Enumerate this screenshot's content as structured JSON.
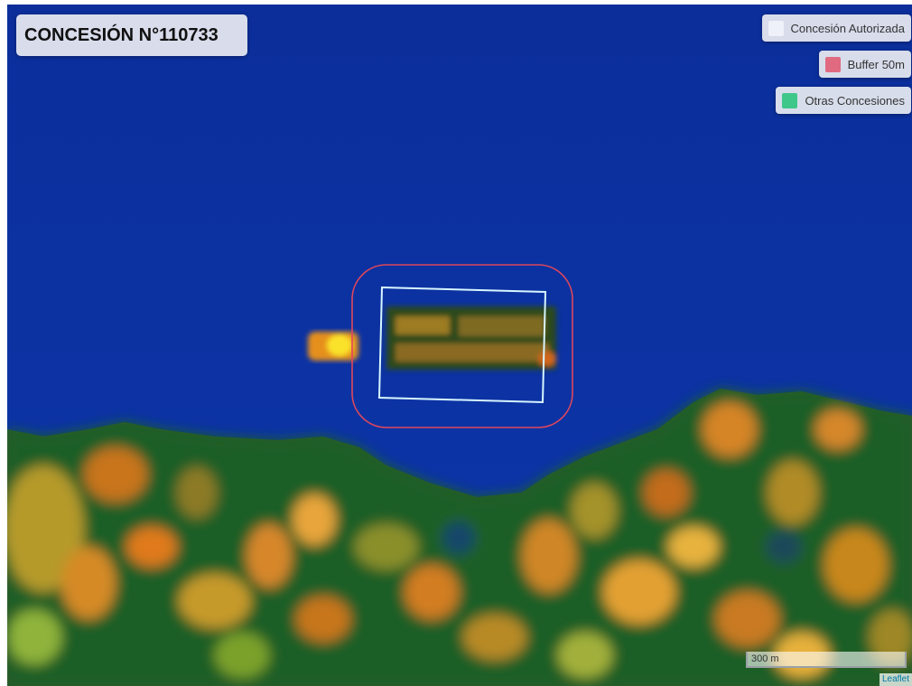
{
  "map": {
    "title": "CONCESIÓN N°110733",
    "legend": [
      {
        "label": "Concesión Autorizada",
        "color": "#eef1f8"
      },
      {
        "label": "Buffer 50m",
        "color": "#e06a80"
      },
      {
        "label": "Otras Concesiones",
        "color": "#3fc78a"
      }
    ],
    "scale_label": "300 m",
    "attribution": "Leaflet",
    "concession_outline_color": "#d8f6ff",
    "buffer_outline_color": "#e0475c",
    "water_color": "#0a2f9e"
  }
}
